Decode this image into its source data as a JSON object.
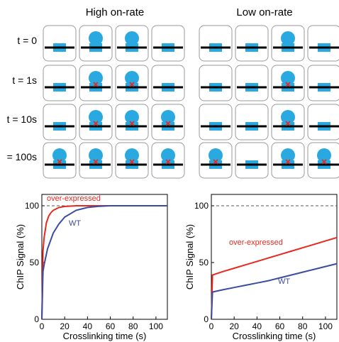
{
  "panel_titles": [
    "High on-rate",
    "Low on-rate"
  ],
  "row_labels": [
    "t = 0",
    "t = 1s",
    "t = 10s",
    "= 100s"
  ],
  "grid_states": {
    "high": [
      [
        "site",
        "bound",
        "bound",
        "site"
      ],
      [
        "site",
        "crosslinked",
        "crosslinked",
        "site"
      ],
      [
        "site",
        "crosslinked",
        "crosslinked",
        "crosslinked"
      ],
      [
        "crosslinked",
        "crosslinked",
        "crosslinked",
        "crosslinked"
      ]
    ],
    "low": [
      [
        "site",
        "site",
        "bound",
        "site"
      ],
      [
        "site",
        "site",
        "crosslinked",
        "site"
      ],
      [
        "site",
        "site",
        "crosslinked",
        "site"
      ],
      [
        "crosslinked",
        "site",
        "crosslinked",
        "crosslinked"
      ]
    ]
  },
  "colors": {
    "protein": "#2aa9e0",
    "site": "#2aa9e0",
    "dna": "#000000",
    "crosslink": "#e8281e",
    "over_expressed": "#e8281e",
    "wt": "#3a4ca0",
    "box_border": "#9a9a9a"
  },
  "chart_data": [
    {
      "type": "line",
      "title": "",
      "xlabel": "Crosslinking time (s)",
      "ylabel": "ChIP Signal (%)",
      "xlim": [
        0,
        110
      ],
      "ylim": [
        0,
        110
      ],
      "xticks": [
        0,
        20,
        40,
        60,
        80,
        100
      ],
      "yticks": [
        0,
        50,
        100
      ],
      "reference_line": 100,
      "series": [
        {
          "name": "over-expressed",
          "x": [
            0,
            1,
            2,
            4,
            6,
            8,
            10,
            15,
            20,
            30,
            40,
            60,
            80,
            110
          ],
          "y": [
            0,
            60,
            72,
            85,
            91,
            94,
            96,
            98.5,
            99.4,
            100,
            100,
            100,
            100,
            100
          ]
        },
        {
          "name": "WT",
          "x": [
            0,
            1,
            2,
            5,
            10,
            15,
            20,
            30,
            40,
            50,
            60,
            80,
            110
          ],
          "y": [
            0,
            42,
            48,
            62,
            76,
            84,
            90,
            96,
            98.5,
            99.5,
            100,
            100,
            100
          ]
        }
      ]
    },
    {
      "type": "line",
      "title": "",
      "xlabel": "Crosslinking time (s)",
      "ylabel": "ChIP Signal (%)",
      "xlim": [
        0,
        110
      ],
      "ylim": [
        0,
        110
      ],
      "xticks": [
        0,
        20,
        40,
        60,
        80,
        100
      ],
      "yticks": [
        0,
        50,
        100
      ],
      "reference_line": 100,
      "series": [
        {
          "name": "over-expressed",
          "x": [
            0,
            1,
            10,
            20,
            30,
            40,
            50,
            60,
            70,
            80,
            90,
            100,
            110
          ],
          "y": [
            0,
            39,
            42,
            45,
            48,
            51,
            54,
            57,
            60,
            63,
            66,
            69,
            72
          ]
        },
        {
          "name": "WT",
          "x": [
            0,
            1,
            10,
            20,
            30,
            40,
            50,
            60,
            70,
            80,
            90,
            100,
            110
          ],
          "y": [
            0,
            24,
            26,
            28,
            30,
            32,
            34,
            36.5,
            39,
            41.5,
            44,
            46.5,
            49
          ]
        }
      ]
    }
  ]
}
